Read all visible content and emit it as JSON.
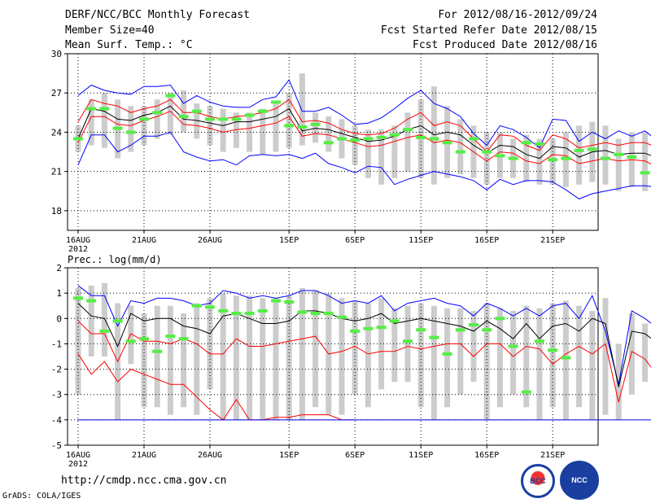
{
  "header": {
    "title": "DERF/NCC/BCC Monthly Forecast",
    "member": "Member Size=40",
    "variable": "Mean Surf. Temp.: °C",
    "period": "For 2012/08/16-2012/09/24",
    "started": "Fcst Started Refer Date 2012/08/15",
    "produced": "Fcst Produced Date 2012/08/16"
  },
  "footer": {
    "url": "http://cmdp.ncc.cma.gov.cn",
    "credit": "GrADS: COLA/IGES"
  },
  "logos": {
    "bcc": "BCC",
    "ncc": "NCC"
  },
  "chart_data": [
    {
      "type": "box",
      "title": "Mean Surf. Temp.: °C",
      "ylim": [
        16.5,
        30
      ],
      "yticks": [
        18,
        21,
        24,
        27,
        30
      ],
      "grid": true,
      "xtick_labels": [
        "16AUG",
        "21AUG",
        "26AUG",
        "1SEP",
        "6SEP",
        "11SEP",
        "16SEP",
        "21SEP"
      ],
      "xtick_days": [
        0,
        5,
        10,
        16,
        21,
        26,
        31,
        36
      ],
      "year_label": "2012",
      "series": [
        {
          "name": "box_low",
          "color": "#cccccc",
          "values": [
            22.5,
            23.0,
            22.8,
            22.0,
            22.5,
            23.0,
            23.5,
            23.8,
            24.0,
            23.5,
            23.0,
            22.5,
            22.8,
            22.5,
            22.3,
            22.5,
            22.8,
            23.0,
            23.2,
            22.5,
            22.0,
            21.5,
            20.5,
            20.0,
            20.5,
            21.0,
            20.5,
            20.0,
            20.5,
            20.8,
            20.5,
            20.0,
            20.5,
            20.5,
            20.2,
            20.0,
            20.0,
            19.8,
            20.0,
            20.2,
            20.0,
            19.5,
            19.8,
            19.5,
            19.8,
            19.5,
            19.2,
            19.0
          ]
        },
        {
          "name": "box_high",
          "color": "#cccccc",
          "values": [
            24.5,
            26.5,
            27.0,
            26.5,
            26.0,
            26.0,
            26.5,
            27.0,
            27.2,
            26.2,
            26.0,
            25.8,
            25.5,
            25.5,
            25.8,
            26.2,
            27.0,
            28.5,
            25.5,
            25.2,
            25.0,
            24.5,
            24.2,
            24.2,
            24.5,
            25.5,
            26.5,
            27.5,
            26.0,
            25.0,
            24.5,
            24.0,
            24.0,
            23.5,
            23.8,
            23.5,
            23.5,
            24.0,
            24.5,
            24.8,
            24.5,
            23.5,
            24.0,
            24.0,
            24.0,
            24.0,
            23.0,
            22.5
          ]
        },
        {
          "name": "max",
          "color": "#0000ff",
          "values": [
            26.8,
            27.6,
            27.2,
            27.0,
            26.9,
            27.5,
            27.5,
            27.6,
            26.2,
            26.8,
            26.3,
            26.0,
            25.9,
            25.9,
            26.5,
            26.7,
            28.0,
            25.6,
            25.6,
            25.9,
            25.3,
            24.6,
            24.7,
            25.1,
            25.8,
            26.6,
            27.2,
            26.2,
            25.8,
            25.2,
            23.9,
            23.0,
            24.5,
            24.2,
            23.6,
            22.8,
            25.0,
            24.9,
            23.3,
            24.0,
            23.5,
            24.1,
            23.7,
            24.1,
            23.3,
            23.8,
            22.8,
            22.3
          ]
        },
        {
          "name": "p80",
          "color": "#ff0000",
          "values": [
            24.8,
            26.5,
            26.2,
            26.0,
            25.5,
            25.8,
            26.0,
            26.5,
            25.5,
            25.5,
            25.2,
            25.0,
            25.2,
            25.3,
            25.5,
            25.8,
            26.5,
            24.8,
            24.9,
            24.7,
            24.2,
            23.9,
            23.8,
            23.9,
            24.3,
            25.0,
            25.5,
            24.5,
            24.8,
            24.5,
            23.5,
            22.5,
            23.8,
            23.7,
            23.0,
            22.6,
            23.8,
            23.5,
            22.8,
            23.0,
            23.2,
            23.0,
            23.2,
            23.2,
            22.8,
            23.0,
            22.8,
            21.5
          ]
        },
        {
          "name": "mean",
          "color": "#000000",
          "values": [
            23.5,
            25.8,
            25.6,
            25.0,
            24.9,
            25.3,
            25.5,
            26.0,
            25.0,
            24.9,
            24.7,
            24.5,
            24.8,
            24.8,
            25.0,
            25.2,
            25.8,
            24.1,
            24.3,
            24.2,
            23.9,
            23.6,
            23.3,
            23.4,
            23.7,
            24.2,
            24.5,
            23.8,
            24.0,
            23.8,
            23.0,
            22.4,
            23.0,
            22.9,
            22.3,
            22.0,
            22.9,
            22.8,
            22.1,
            22.5,
            22.6,
            22.3,
            22.4,
            22.4,
            22.0,
            22.3,
            21.9,
            21.0
          ]
        },
        {
          "name": "p20",
          "color": "#ff0000",
          "values": [
            23.2,
            25.2,
            25.2,
            24.6,
            24.5,
            24.9,
            25.2,
            25.6,
            24.6,
            24.5,
            24.3,
            24.0,
            24.2,
            24.3,
            24.5,
            24.7,
            25.2,
            23.7,
            23.9,
            23.8,
            23.5,
            23.2,
            22.9,
            23.0,
            23.3,
            23.6,
            23.8,
            23.2,
            23.4,
            23.2,
            22.5,
            21.8,
            22.5,
            22.4,
            21.8,
            21.6,
            22.3,
            22.2,
            21.6,
            21.8,
            22.0,
            21.8,
            21.9,
            21.8,
            21.3,
            21.8,
            21.4,
            20.3
          ]
        },
        {
          "name": "min",
          "color": "#0000ff",
          "values": [
            21.5,
            23.8,
            23.8,
            22.5,
            23.0,
            23.7,
            23.7,
            24.0,
            22.5,
            22.1,
            21.8,
            21.9,
            21.5,
            22.2,
            22.3,
            22.2,
            22.3,
            22.0,
            22.4,
            21.6,
            21.3,
            20.9,
            21.4,
            21.3,
            20.0,
            20.4,
            20.7,
            21.0,
            20.8,
            20.6,
            20.3,
            19.6,
            20.4,
            20.0,
            20.3,
            20.3,
            20.2,
            19.6,
            18.9,
            19.3,
            19.5,
            19.7,
            19.9,
            19.9,
            19.8,
            19.3,
            18.6
          ]
        },
        {
          "name": "observed",
          "color": "#55ee44",
          "values": [
            23.5,
            25.8,
            25.8,
            24.3,
            24.0,
            25.0,
            25.5,
            26.8,
            25.2,
            25.6,
            25.0,
            25.0,
            25.0,
            25.3,
            25.6,
            26.3,
            24.5,
            24.4,
            24.6,
            23.2,
            23.5,
            23.4,
            23.5,
            23.6,
            23.8,
            24.2,
            23.6,
            23.5,
            23.2,
            22.5,
            23.5,
            22.5,
            22.2,
            22.0,
            23.2,
            23.1,
            21.9,
            22.0,
            22.6,
            22.7,
            22.0,
            22.3,
            22.1,
            20.9
          ]
        }
      ]
    },
    {
      "type": "box",
      "title": "Prec.: log(mm/d)",
      "ylim": [
        -5,
        2
      ],
      "yticks": [
        -5,
        -4,
        -3,
        -2,
        -1,
        0,
        1,
        2
      ],
      "grid": true,
      "xtick_labels": [
        "16AUG",
        "21AUG",
        "26AUG",
        "1SEP",
        "6SEP",
        "11SEP",
        "16SEP",
        "21SEP"
      ],
      "xtick_days": [
        0,
        5,
        10,
        16,
        21,
        26,
        31,
        36
      ],
      "year_label": "2012",
      "series": [
        {
          "name": "box_low",
          "color": "#cccccc",
          "values": [
            -3.0,
            -1.5,
            -1.5,
            -4.0,
            -1.8,
            -3.5,
            -3.5,
            -3.8,
            -3.5,
            -3.8,
            -2.8,
            -4.0,
            -4.0,
            -4.0,
            -4.0,
            -4.0,
            -4.0,
            -4.0,
            -3.5,
            -3.8,
            -3.8,
            -3.0,
            -3.5,
            -2.8,
            -2.5,
            -2.5,
            -3.5,
            -4.0,
            -3.5,
            -3.0,
            -2.5,
            -4.0,
            -3.5,
            -3.0,
            -3.5,
            -4.0,
            -3.5,
            -4.0,
            -3.5,
            -4.0,
            -3.8,
            -4.0,
            -3.0,
            -2.5,
            -3.5,
            -4.0,
            -4.0,
            -4.0
          ]
        },
        {
          "name": "box_high",
          "color": "#cccccc",
          "values": [
            1.2,
            1.3,
            1.4,
            0.6,
            0.5,
            0.2,
            0.5,
            0.5,
            0.2,
            0.6,
            0.8,
            1.0,
            0.9,
            0.9,
            0.8,
            0.8,
            0.9,
            1.2,
            1.1,
            1.0,
            0.8,
            0.7,
            0.6,
            0.8,
            0.4,
            0.5,
            0.6,
            0.5,
            0.4,
            0.4,
            0.3,
            0.6,
            0.4,
            0.3,
            0.5,
            0.4,
            0.6,
            0.7,
            0.5,
            0.3,
            0.8,
            -1.0,
            0.2,
            -0.2,
            -0.5,
            -0.3,
            -0.8,
            -0.9
          ]
        },
        {
          "name": "max",
          "color": "#0000ff",
          "values": [
            1.3,
            0.9,
            0.9,
            -0.3,
            0.7,
            0.6,
            0.8,
            0.8,
            0.7,
            0.5,
            0.6,
            1.1,
            1.0,
            0.8,
            0.9,
            0.8,
            0.9,
            1.1,
            1.1,
            0.9,
            0.6,
            0.7,
            0.6,
            0.9,
            0.3,
            0.6,
            0.7,
            0.8,
            0.6,
            0.5,
            0.1,
            0.6,
            0.4,
            0.1,
            0.4,
            0.1,
            0.5,
            0.6,
            0.0,
            0.9,
            -0.5,
            -2.6,
            0.3,
            0.0,
            -0.4
          ]
        },
        {
          "name": "p80",
          "color": "#ff0000",
          "values": [
            -0.1,
            -0.6,
            -0.6,
            -1.7,
            -0.6,
            -0.9,
            -0.9,
            -1.0,
            -0.8,
            -1.0,
            -1.4,
            -1.4,
            -0.8,
            -1.1,
            -1.1,
            -1.0,
            -0.9,
            -0.8,
            -0.7,
            -1.4,
            -1.3,
            -1.1,
            -1.4,
            -1.3,
            -1.3,
            -1.1,
            -1.2,
            -1.1,
            -1.0,
            -1.0,
            -1.5,
            -1.0,
            -1.0,
            -1.5,
            -1.1,
            -1.2,
            -1.8,
            -1.4,
            -1.1,
            -1.4,
            -1.0,
            -3.3,
            -1.3,
            -1.6,
            -2.3,
            -2.5
          ]
        },
        {
          "name": "mean",
          "color": "#000000",
          "values": [
            0.6,
            0.1,
            0.0,
            -1.1,
            0.2,
            -0.1,
            0.0,
            0.0,
            -0.3,
            -0.4,
            -0.6,
            0.1,
            0.2,
            0.0,
            -0.2,
            -0.2,
            -0.1,
            0.3,
            0.3,
            0.2,
            0.0,
            -0.1,
            0.0,
            0.2,
            -0.2,
            -0.1,
            0.0,
            -0.1,
            -0.2,
            -0.3,
            -0.5,
            -0.1,
            -0.4,
            -0.8,
            -0.2,
            -0.8,
            -0.3,
            -0.2,
            -0.5,
            0.0,
            -0.2,
            -2.7,
            -0.5,
            -0.6,
            -1.0,
            -1.2
          ]
        },
        {
          "name": "p20",
          "color": "#ff0000",
          "values": [
            -1.4,
            -2.2,
            -1.7,
            -2.5,
            -2.0,
            -2.2,
            -2.4,
            -2.6,
            -2.6,
            -3.1,
            -3.6,
            -4.0,
            -3.2,
            -4.0,
            -4.0,
            -3.9,
            -3.9,
            -3.8,
            -3.8,
            -3.8,
            -4.0,
            -4.0
          ]
        },
        {
          "name": "min",
          "color": "#0000ff",
          "values": [
            -4.0,
            -4.0,
            -4.0,
            -4.0,
            -4.0,
            -4.0,
            -4.0,
            -4.0,
            -4.0,
            -4.0,
            -4.0,
            -4.0,
            -4.0,
            -4.0,
            -4.0,
            -4.0,
            -4.0,
            -4.0,
            -4.0,
            -4.0,
            -4.0,
            -4.0,
            -4.0,
            -4.0,
            -4.0,
            -4.0,
            -4.0,
            -4.0,
            -4.0,
            -4.0,
            -4.0,
            -4.0,
            -4.0,
            -4.0,
            -4.0,
            -4.0,
            -4.0,
            -4.0,
            -4.0,
            -4.0,
            -4.0,
            -4.0,
            -4.0,
            -4.0,
            -4.0,
            -4.0,
            -4.0
          ]
        },
        {
          "name": "observed",
          "color": "#55ee44",
          "values": [
            0.8,
            0.7,
            -0.5,
            -0.1,
            -0.9,
            -0.8,
            -1.3,
            -0.7,
            -0.8,
            0.5,
            0.45,
            0.3,
            0.2,
            0.2,
            0.3,
            0.7,
            0.65,
            0.25,
            0.2,
            0.2,
            0.05,
            -0.5,
            -0.4,
            -0.35,
            -0.1,
            -0.9,
            -0.45,
            -0.75,
            -1.4,
            -0.45,
            -0.25,
            -0.45,
            0.0,
            -1.1,
            -2.9,
            -0.9,
            -1.25,
            -1.55
          ]
        }
      ]
    }
  ]
}
